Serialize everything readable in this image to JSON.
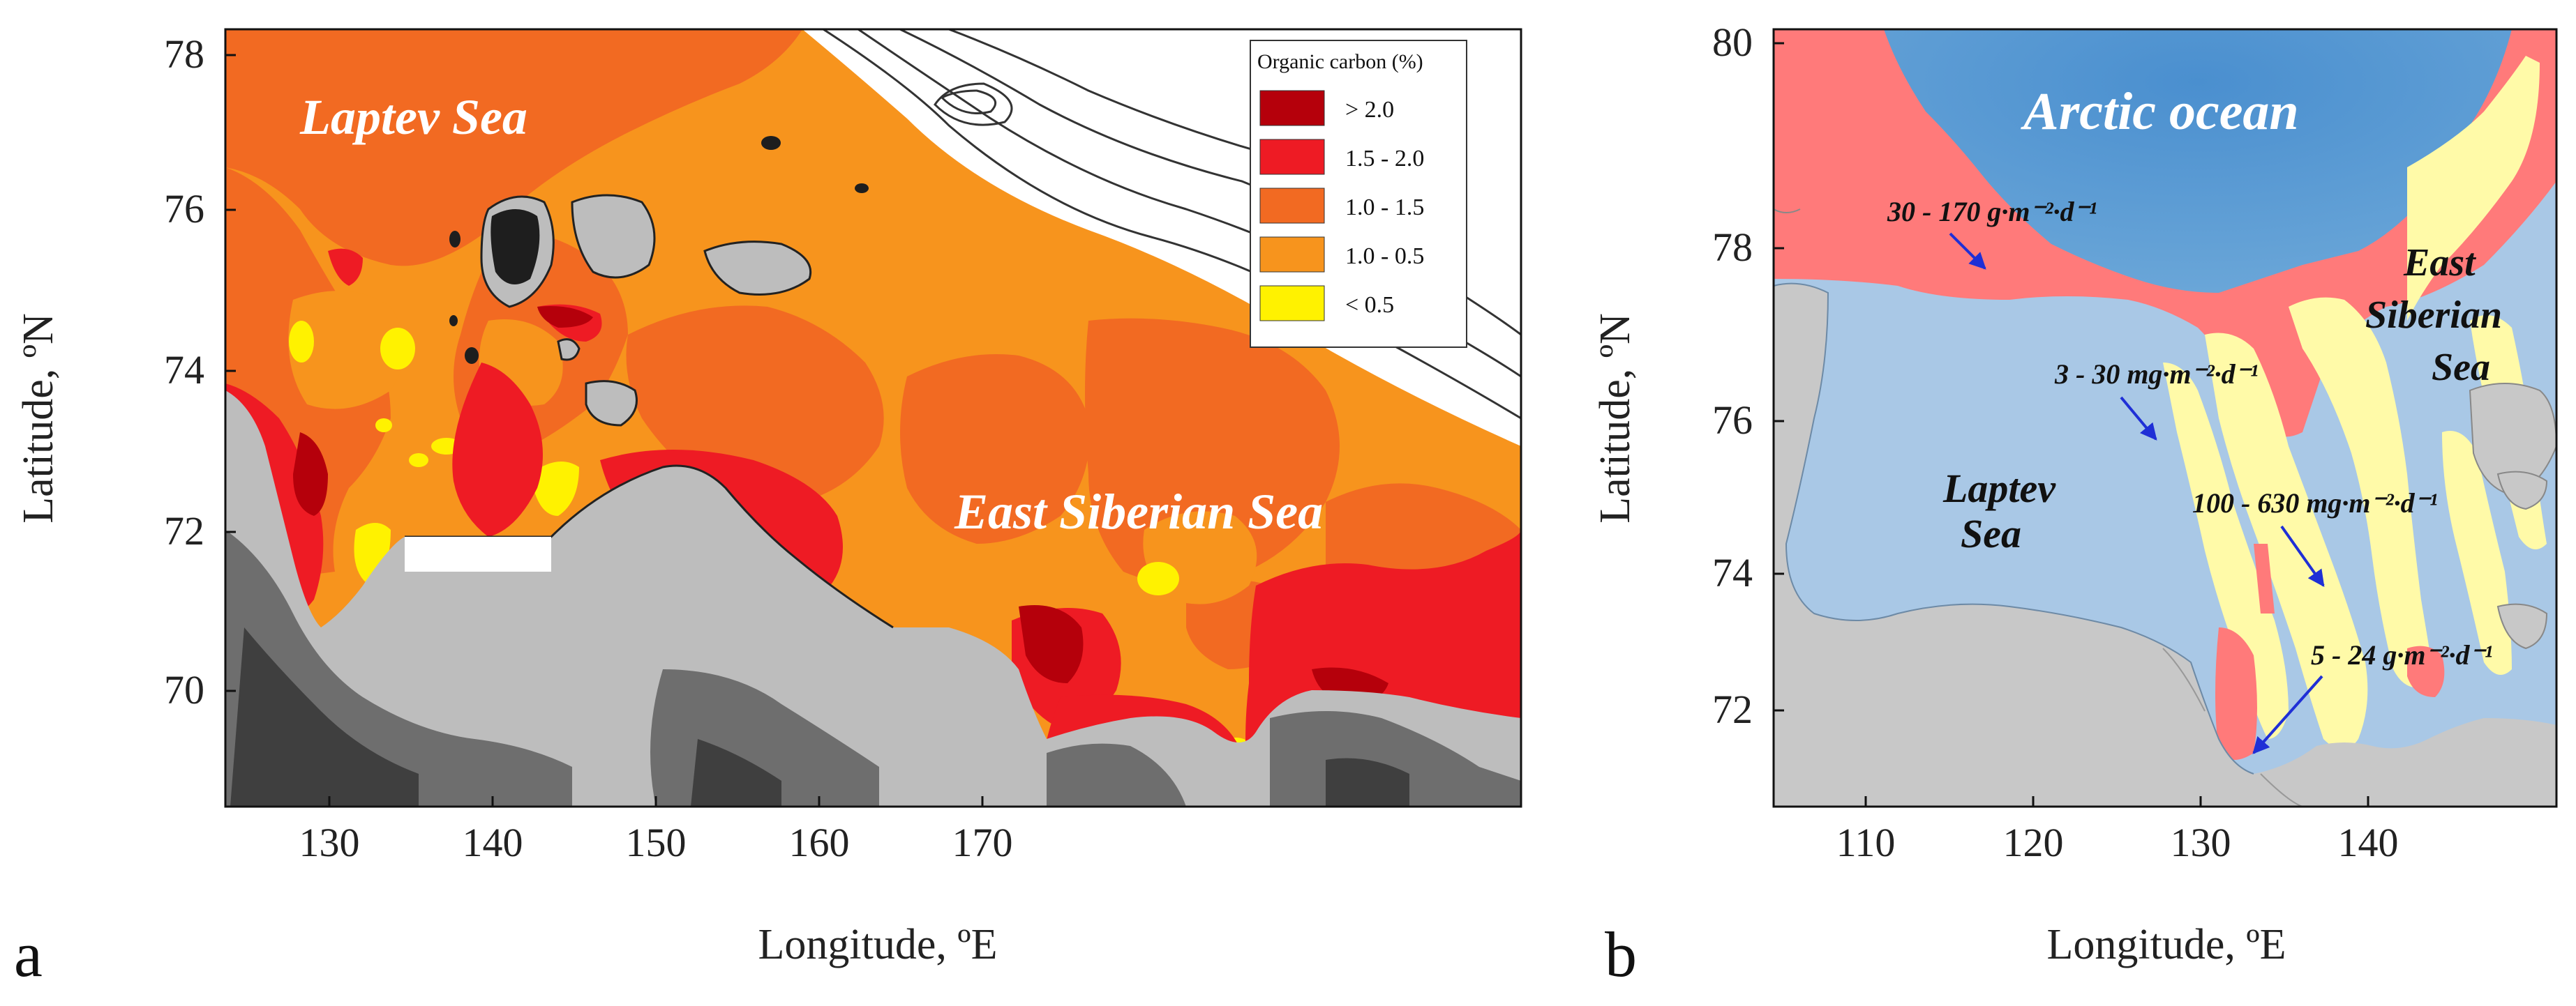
{
  "panels": {
    "a": {
      "letter": "a",
      "xlabel": "Longitude, ºE",
      "ylabel": "Latitude, ºN",
      "x_ticks": [
        "130",
        "140",
        "150",
        "160",
        "170"
      ],
      "y_ticks": [
        "70",
        "72",
        "74",
        "76",
        "78"
      ],
      "labels": {
        "laptev": "Laptev Sea",
        "east_siberian": "East Siberian Sea"
      },
      "legend": {
        "title": "Organic carbon (%)",
        "items": [
          {
            "label": "> 2.0",
            "color": "#b5000b"
          },
          {
            "label": "1.5 - 2.0",
            "color": "#ee1b24"
          },
          {
            "label": "1.0 - 1.5",
            "color": "#f26a22"
          },
          {
            "label": "1.0 - 0.5",
            "color": "#f7941d"
          },
          {
            "label": "< 0.5",
            "color": "#fff200"
          }
        ]
      }
    },
    "b": {
      "letter": "b",
      "xlabel": "Longitude, ºE",
      "ylabel": "Latitude, ºN",
      "x_ticks": [
        "110",
        "120",
        "130",
        "140"
      ],
      "y_ticks": [
        "72",
        "74",
        "76",
        "78",
        "80"
      ],
      "labels": {
        "arctic": "Arctic ocean",
        "laptev_1": "Laptev",
        "laptev_2": "Sea",
        "es_1": "East",
        "es_2": "Siberian",
        "es_3": "Sea"
      },
      "flux_labels": [
        "30 - 170 g·m⁻²·d⁻¹",
        "3 - 30 mg·m⁻²·d⁻¹",
        "100 - 630 mg·m⁻²·d⁻¹",
        "5 - 24 g·m⁻²·d⁻¹"
      ],
      "colors": {
        "ocean": "#5b9bd5",
        "shelf": "#a9c8e6",
        "high_flux": "#ff7a7a",
        "low_flux": "#fffaa8",
        "land": "#c8c8c8"
      }
    }
  }
}
